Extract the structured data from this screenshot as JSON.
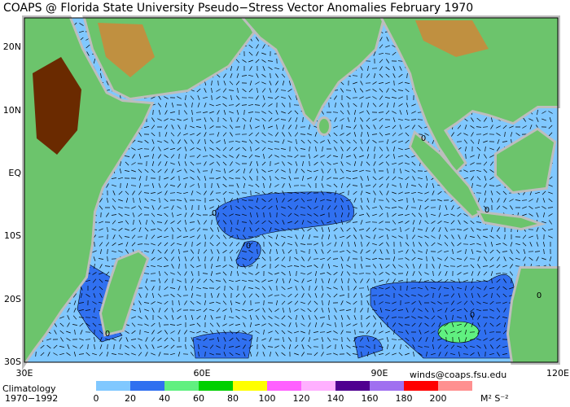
{
  "header": {
    "title": "COAPS @ Florida State University Pseudo−Stress Vector Anomalies  February 1970"
  },
  "map": {
    "lat_labels": [
      "20N",
      "10N",
      "EQ",
      "10S",
      "20S",
      "30S"
    ],
    "lon_labels": [
      "30E",
      "60E",
      "90E",
      "120E"
    ],
    "contour_labels": [
      "0",
      "0",
      "0",
      "0",
      "0",
      "0",
      "0"
    ]
  },
  "colorbar": {
    "ticks": [
      0,
      20,
      40,
      60,
      80,
      100,
      120,
      140,
      160,
      180,
      200
    ],
    "colors": [
      "#80c8ff",
      "#3070f0",
      "#60f080",
      "#00d000",
      "#ffff00",
      "#ff60ff",
      "#ffb0ff",
      "#500090",
      "#a070f0",
      "#ff0000",
      "#ff9090"
    ],
    "unit": "M² S⁻²"
  },
  "footer": {
    "climatology": "Climatology",
    "period": "1970−1992",
    "contact": "winds@coaps.fsu.edu"
  }
}
